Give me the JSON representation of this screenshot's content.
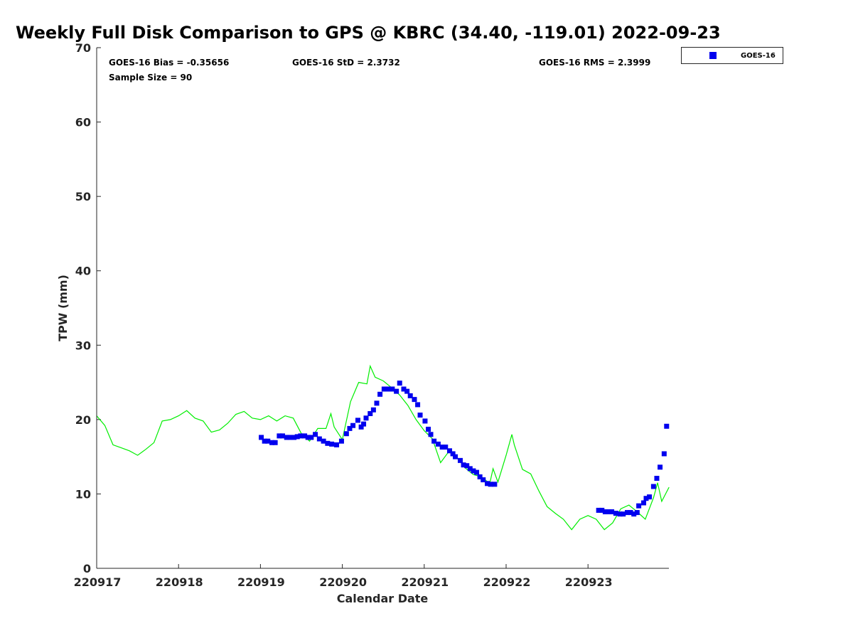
{
  "chart_data": {
    "type": "scatter",
    "title": "Weekly Full Disk Comparison to GPS @ KBRC (34.40, -119.01) 2022-09-23",
    "xlabel": "Calendar Date",
    "ylabel": "TPW (mm)",
    "x_units": "days since 220917",
    "xlim": [
      0,
      6.99
    ],
    "ylim": [
      0,
      70
    ],
    "xticks": [
      0,
      1,
      2,
      3,
      4,
      5,
      6
    ],
    "xtick_labels": [
      "220917",
      "220918",
      "220919",
      "220920",
      "220921",
      "220922",
      "220923"
    ],
    "yticks": [
      0,
      10,
      20,
      30,
      40,
      50,
      60,
      70
    ],
    "ytick_labels": [
      "0",
      "10",
      "20",
      "30",
      "40",
      "50",
      "60",
      "70"
    ],
    "grid": false,
    "legend": {
      "placement": "top-right-outside",
      "entries": [
        "GOES-16"
      ]
    },
    "stats": {
      "bias": "GOES-16 Bias = -0.35656",
      "std": "GOES-16 StD = 2.3732",
      "rms": "GOES-16 RMS = 2.3999",
      "sample": "Sample Size = 90"
    },
    "series": [
      {
        "name": "GPS",
        "kind": "line",
        "color": "#00ee00",
        "points": [
          [
            0,
            20.5
          ],
          [
            0.1,
            19.2
          ],
          [
            0.2,
            16.6
          ],
          [
            0.3,
            16.2
          ],
          [
            0.4,
            15.8
          ],
          [
            0.5,
            15.2
          ],
          [
            0.6,
            16.0
          ],
          [
            0.7,
            16.9
          ],
          [
            0.8,
            19.8
          ],
          [
            0.9,
            20.0
          ],
          [
            1.0,
            20.5
          ],
          [
            1.1,
            21.2
          ],
          [
            1.2,
            20.2
          ],
          [
            1.3,
            19.8
          ],
          [
            1.4,
            18.3
          ],
          [
            1.5,
            18.6
          ],
          [
            1.6,
            19.5
          ],
          [
            1.7,
            20.7
          ],
          [
            1.8,
            21.1
          ],
          [
            1.9,
            20.2
          ],
          [
            2.0,
            20.0
          ],
          [
            2.1,
            20.5
          ],
          [
            2.2,
            19.8
          ],
          [
            2.3,
            20.5
          ],
          [
            2.4,
            20.2
          ],
          [
            2.5,
            18.1
          ],
          [
            2.6,
            17.1
          ],
          [
            2.7,
            18.8
          ],
          [
            2.8,
            18.8
          ],
          [
            2.86,
            20.8
          ],
          [
            2.9,
            19.0
          ],
          [
            3.0,
            17.3
          ],
          [
            3.1,
            22.4
          ],
          [
            3.2,
            25.0
          ],
          [
            3.3,
            24.8
          ],
          [
            3.34,
            27.2
          ],
          [
            3.4,
            25.7
          ],
          [
            3.5,
            25.2
          ],
          [
            3.6,
            24.3
          ],
          [
            3.7,
            23.3
          ],
          [
            3.8,
            21.9
          ],
          [
            3.9,
            20.0
          ],
          [
            4.0,
            18.5
          ],
          [
            4.1,
            17.4
          ],
          [
            4.2,
            14.2
          ],
          [
            4.3,
            15.7
          ],
          [
            4.4,
            14.9
          ],
          [
            4.5,
            13.5
          ],
          [
            4.6,
            12.6
          ],
          [
            4.7,
            12.3
          ],
          [
            4.8,
            11.4
          ],
          [
            4.84,
            13.4
          ],
          [
            4.9,
            11.6
          ],
          [
            5.0,
            15.2
          ],
          [
            5.07,
            18.0
          ],
          [
            5.1,
            16.6
          ],
          [
            5.2,
            13.3
          ],
          [
            5.3,
            12.7
          ],
          [
            5.4,
            10.4
          ],
          [
            5.5,
            8.3
          ],
          [
            5.6,
            7.4
          ],
          [
            5.7,
            6.6
          ],
          [
            5.8,
            5.2
          ],
          [
            5.9,
            6.6
          ],
          [
            6.0,
            7.1
          ],
          [
            6.1,
            6.6
          ],
          [
            6.2,
            5.2
          ],
          [
            6.3,
            6.1
          ],
          [
            6.4,
            8.0
          ],
          [
            6.5,
            8.5
          ],
          [
            6.6,
            7.6
          ],
          [
            6.7,
            6.6
          ],
          [
            6.8,
            9.5
          ],
          [
            6.85,
            11.5
          ],
          [
            6.9,
            9.0
          ],
          [
            6.99,
            10.9
          ]
        ]
      },
      {
        "name": "GOES-16",
        "kind": "scatter",
        "color": "#0000ee",
        "points": [
          [
            2.01,
            17.6
          ],
          [
            2.05,
            17.1
          ],
          [
            2.09,
            17.1
          ],
          [
            2.14,
            16.9
          ],
          [
            2.18,
            16.9
          ],
          [
            2.23,
            17.8
          ],
          [
            2.27,
            17.8
          ],
          [
            2.32,
            17.6
          ],
          [
            2.36,
            17.6
          ],
          [
            2.41,
            17.6
          ],
          [
            2.45,
            17.7
          ],
          [
            2.49,
            17.8
          ],
          [
            2.54,
            17.8
          ],
          [
            2.58,
            17.6
          ],
          [
            2.62,
            17.6
          ],
          [
            2.67,
            18.0
          ],
          [
            2.72,
            17.4
          ],
          [
            2.77,
            17.1
          ],
          [
            2.82,
            16.8
          ],
          [
            2.87,
            16.7
          ],
          [
            2.93,
            16.6
          ],
          [
            2.99,
            17.1
          ],
          [
            3.05,
            18.1
          ],
          [
            3.09,
            18.8
          ],
          [
            3.13,
            19.2
          ],
          [
            3.19,
            19.9
          ],
          [
            3.23,
            19.0
          ],
          [
            3.26,
            19.4
          ],
          [
            3.29,
            20.2
          ],
          [
            3.34,
            20.8
          ],
          [
            3.38,
            21.3
          ],
          [
            3.42,
            22.2
          ],
          [
            3.46,
            23.4
          ],
          [
            3.51,
            24.1
          ],
          [
            3.54,
            24.1
          ],
          [
            3.58,
            24.1
          ],
          [
            3.61,
            24.1
          ],
          [
            3.66,
            23.8
          ],
          [
            3.7,
            24.9
          ],
          [
            3.75,
            24.1
          ],
          [
            3.79,
            23.8
          ],
          [
            3.83,
            23.2
          ],
          [
            3.88,
            22.7
          ],
          [
            3.92,
            22.0
          ],
          [
            3.95,
            20.6
          ],
          [
            4.01,
            19.8
          ],
          [
            4.05,
            18.7
          ],
          [
            4.08,
            18.0
          ],
          [
            4.12,
            17.1
          ],
          [
            4.17,
            16.7
          ],
          [
            4.22,
            16.3
          ],
          [
            4.26,
            16.3
          ],
          [
            4.31,
            15.8
          ],
          [
            4.35,
            15.4
          ],
          [
            4.38,
            15.0
          ],
          [
            4.44,
            14.5
          ],
          [
            4.48,
            13.9
          ],
          [
            4.52,
            13.8
          ],
          [
            4.56,
            13.4
          ],
          [
            4.6,
            13.1
          ],
          [
            4.64,
            12.9
          ],
          [
            4.68,
            12.3
          ],
          [
            4.72,
            11.9
          ],
          [
            4.77,
            11.4
          ],
          [
            4.81,
            11.3
          ],
          [
            4.86,
            11.3
          ],
          [
            6.13,
            7.8
          ],
          [
            6.17,
            7.8
          ],
          [
            6.21,
            7.6
          ],
          [
            6.25,
            7.6
          ],
          [
            6.29,
            7.6
          ],
          [
            6.34,
            7.4
          ],
          [
            6.39,
            7.3
          ],
          [
            6.43,
            7.3
          ],
          [
            6.48,
            7.5
          ],
          [
            6.52,
            7.5
          ],
          [
            6.56,
            7.3
          ],
          [
            6.6,
            7.5
          ],
          [
            6.62,
            8.4
          ],
          [
            6.68,
            8.8
          ],
          [
            6.71,
            9.4
          ],
          [
            6.75,
            9.6
          ],
          [
            6.8,
            11.0
          ],
          [
            6.84,
            12.1
          ],
          [
            6.88,
            13.6
          ],
          [
            6.93,
            15.4
          ],
          [
            6.96,
            19.1
          ]
        ]
      }
    ]
  }
}
